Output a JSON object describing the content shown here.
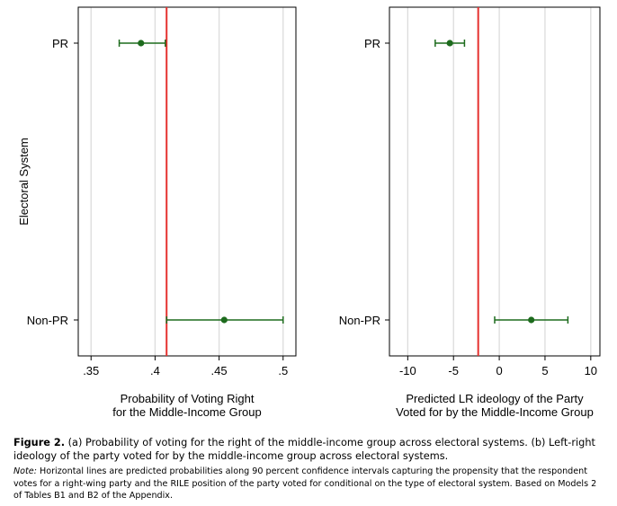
{
  "chart_data": [
    {
      "type": "errorbar",
      "panel": "a",
      "y_axis_label": "Electoral System",
      "categories": [
        "PR",
        "Non-PR"
      ],
      "xlabel": [
        "Probability of Voting Right",
        "for the Middle-Income Group"
      ],
      "xlim": [
        0.34,
        0.51
      ],
      "xticks": [
        0.35,
        0.4,
        0.45,
        0.5
      ],
      "xtick_labels": [
        ".35",
        ".4",
        ".45",
        ".5"
      ],
      "grid": true,
      "reference_line": 0.409,
      "points": [
        {
          "category": "PR",
          "estimate": 0.389,
          "lower": 0.372,
          "upper": 0.408
        },
        {
          "category": "Non-PR",
          "estimate": 0.454,
          "lower": 0.409,
          "upper": 0.5
        }
      ]
    },
    {
      "type": "errorbar",
      "panel": "b",
      "categories": [
        "PR",
        "Non-PR"
      ],
      "xlabel": [
        "Predicted LR ideology of the Party",
        "Voted for by the Middle-Income Group"
      ],
      "xlim": [
        -12,
        11
      ],
      "xticks": [
        -10,
        -5,
        0,
        5,
        10
      ],
      "xtick_labels": [
        "-10",
        "-5",
        "0",
        "5",
        "10"
      ],
      "grid": true,
      "reference_line": -2.3,
      "points": [
        {
          "category": "PR",
          "estimate": -5.4,
          "lower": -7.0,
          "upper": -3.8
        },
        {
          "category": "Non-PR",
          "estimate": 3.5,
          "lower": -0.5,
          "upper": 7.5
        }
      ]
    }
  ],
  "colors": {
    "marker": "#1d6b1d",
    "reference_line": "#e5312f",
    "grid": "#dcdcdc",
    "axis": "#000000"
  },
  "caption": {
    "label": "Figure 2.",
    "text": "(a) Probability of voting for the right of the middle-income group across electoral systems. (b) Left-right ideology of the party voted for by the middle-income group across electoral systems.",
    "note_label": "Note:",
    "note_text": "Horizontal lines are predicted probabilities along 90 percent confidence intervals capturing the propensity that the respondent votes for a right-wing party and the RILE position of the party voted for conditional on the type of electoral system. Based on Models 2 of Tables B1 and B2 of the Appendix."
  }
}
